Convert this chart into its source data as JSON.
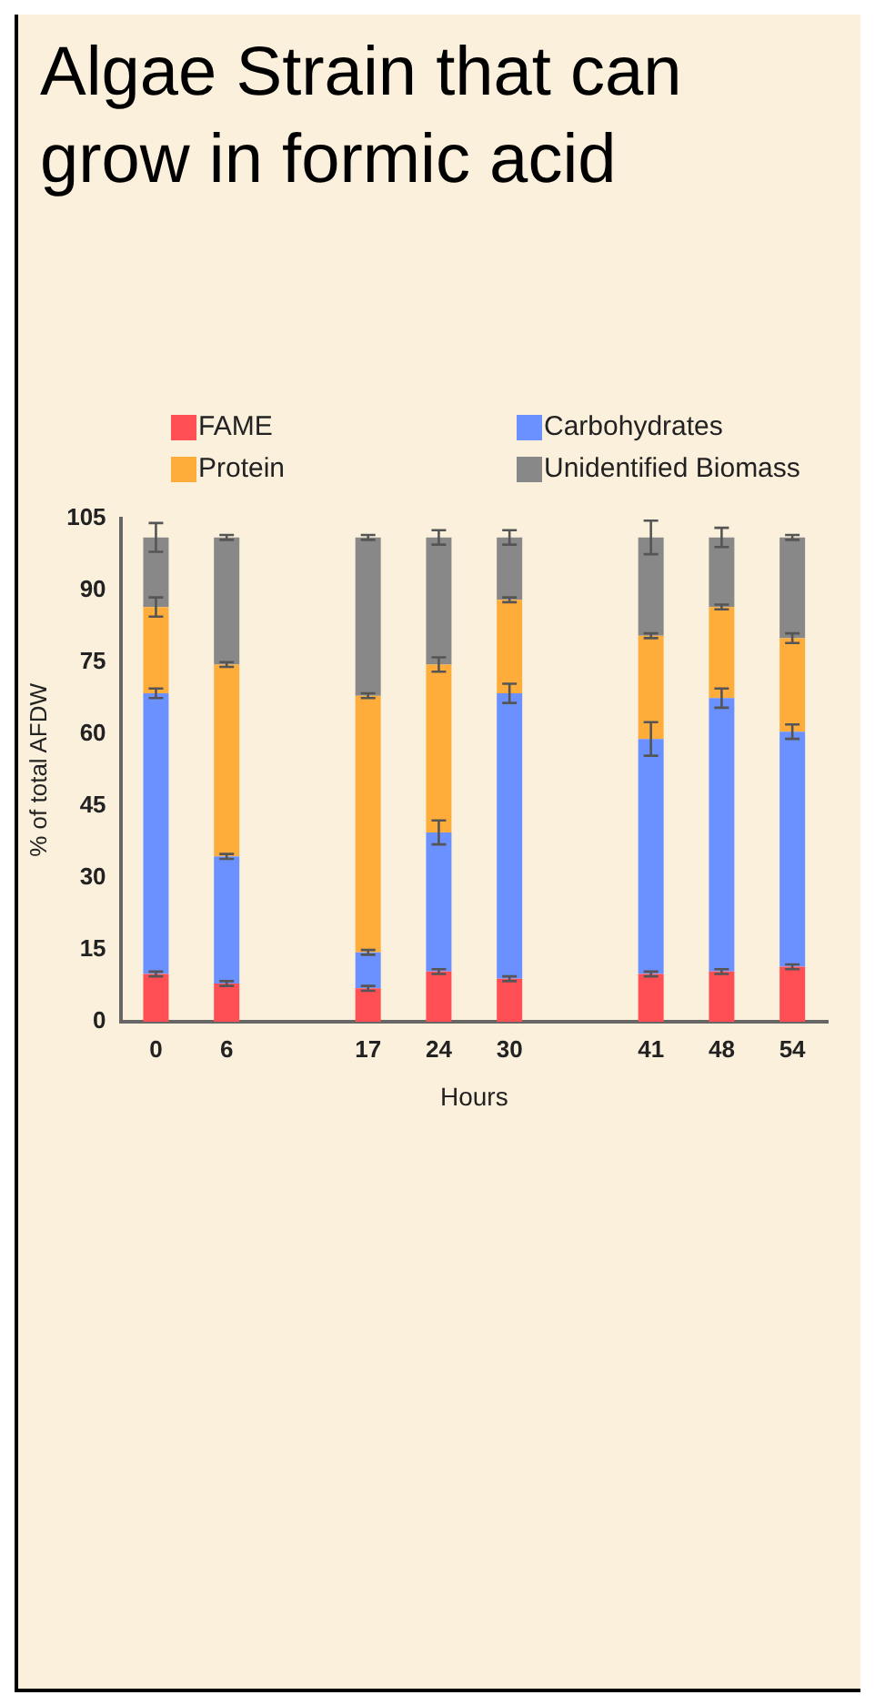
{
  "chart_data": {
    "type": "bar",
    "title": "Algae Strain that can grow in formic acid",
    "xlabel": "Hours",
    "ylabel": "% of total AFDW",
    "categories": [
      "0",
      "6",
      null,
      "17",
      "24",
      "30",
      null,
      "41",
      "48",
      "54"
    ],
    "stacked": true,
    "ylim": [
      0,
      105
    ],
    "yticks": [
      0,
      15,
      30,
      45,
      60,
      75,
      90,
      105
    ],
    "grid": false,
    "legend": "top",
    "series": [
      {
        "name": "FAME",
        "color": "#ff4f55",
        "values": [
          10,
          8,
          null,
          7,
          10.5,
          9,
          null,
          10,
          10.5,
          11.5
        ],
        "errors": [
          0.5,
          0.5,
          null,
          0.5,
          0.5,
          0.5,
          null,
          0.5,
          0.5,
          0.5
        ]
      },
      {
        "name": "Carbohydrates",
        "color": "#6a91ff",
        "values": [
          58.5,
          26.5,
          null,
          7.5,
          29,
          59.5,
          null,
          49,
          57,
          49
        ],
        "errors": [
          1,
          0.5,
          null,
          0.5,
          2.5,
          2,
          null,
          3.5,
          2,
          1.5
        ]
      },
      {
        "name": "Protein",
        "color": "#ffad3a",
        "values": [
          18,
          40,
          null,
          53.5,
          35,
          19.5,
          null,
          21.5,
          19,
          19.5
        ],
        "errors": [
          2,
          0.5,
          null,
          0.5,
          1.5,
          0.5,
          null,
          0.5,
          0.5,
          1
        ]
      },
      {
        "name": "Unidentified Biomass",
        "color": "#888888",
        "values": [
          14.5,
          26.5,
          null,
          33,
          26.5,
          13,
          null,
          20.5,
          14.5,
          21
        ],
        "errors": [
          3,
          0.5,
          null,
          0.5,
          1.5,
          1.5,
          null,
          3.5,
          2,
          0.5
        ]
      }
    ]
  }
}
